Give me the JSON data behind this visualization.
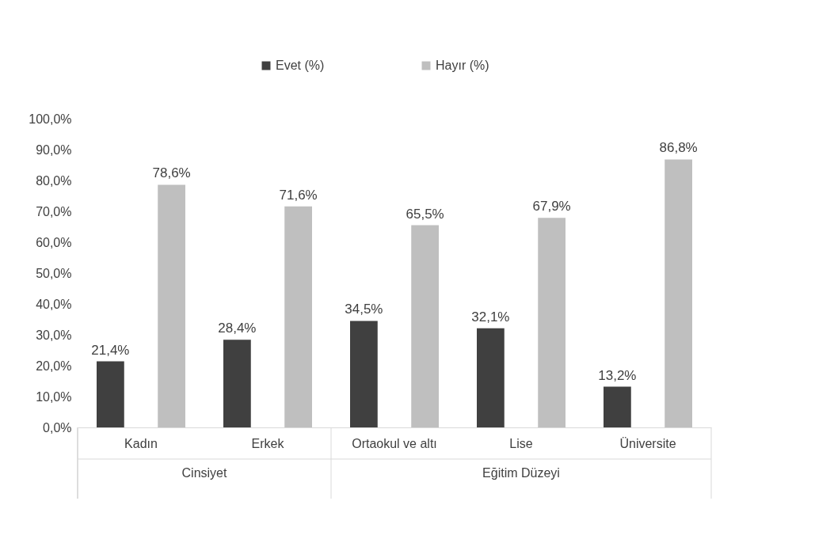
{
  "chart_data": {
    "type": "bar",
    "categories": [
      "Kadın",
      "Erkek",
      "Ortaokul ve altı",
      "Lise",
      "Üniversite"
    ],
    "series": [
      {
        "name": "Evet (%)",
        "color": "#404040",
        "values": [
          21.4,
          28.4,
          34.5,
          32.1,
          13.2
        ],
        "value_labels": [
          "21,4%",
          "28,4%",
          "34,5%",
          "32,1%",
          "13,2%"
        ]
      },
      {
        "name": "Hayır (%)",
        "color": "#bfbfbf",
        "values": [
          78.6,
          71.6,
          65.5,
          67.9,
          86.8
        ],
        "value_labels": [
          "78,6%",
          "71,6%",
          "65,5%",
          "67,9%",
          "86,8%"
        ]
      }
    ],
    "ylim": [
      0,
      100
    ],
    "yticks": [
      {
        "value": 0,
        "label": "0,0%"
      },
      {
        "value": 10,
        "label": "10,0%"
      },
      {
        "value": 20,
        "label": "20,0%"
      },
      {
        "value": 30,
        "label": "30,0%"
      },
      {
        "value": 40,
        "label": "40,0%"
      },
      {
        "value": 50,
        "label": "50,0%"
      },
      {
        "value": 60,
        "label": "60,0%"
      },
      {
        "value": 70,
        "label": "70,0%"
      },
      {
        "value": 80,
        "label": "80,0%"
      },
      {
        "value": 90,
        "label": "90,0%"
      },
      {
        "value": 100,
        "label": "100,0%"
      }
    ],
    "annotations": [
      "Cinsiyet",
      "Eğitim Düzeyi"
    ],
    "grid": false,
    "legend": "top"
  }
}
